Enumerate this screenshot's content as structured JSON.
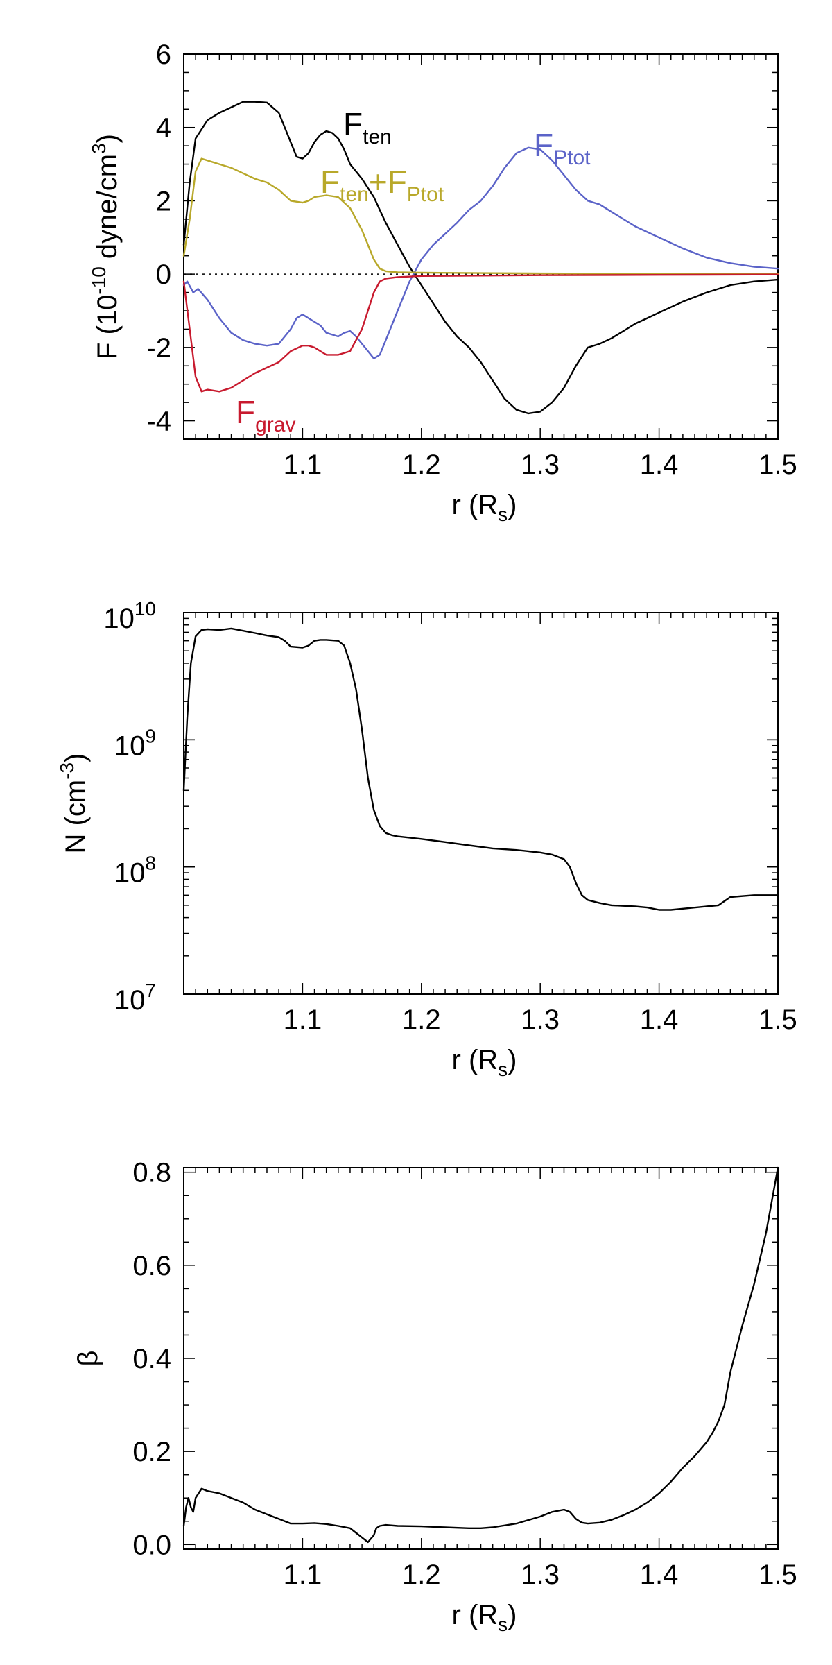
{
  "chart_data": [
    {
      "type": "line",
      "xlabel": "r (R",
      "xlabel_sub": "s",
      "xlabel_close": ")",
      "ylabel": "F (10",
      "ylabel_exp": "-10",
      "ylabel_mid": " dyne/cm",
      "ylabel_exp2": "3",
      "ylabel_close": ")",
      "xlim": [
        1.0,
        1.5
      ],
      "ylim": [
        -4.5,
        6.0
      ],
      "xticks": [
        "1.1",
        "1.2",
        "1.3",
        "1.4",
        "1.5"
      ],
      "yticks": [
        "-4",
        "-2",
        "0",
        "2",
        "4",
        "6"
      ],
      "zero_line": "dotted",
      "series": [
        {
          "name": "F_ten",
          "label_main": "F",
          "label_sub": "ten",
          "color": "#000000",
          "x": [
            1.0,
            1.005,
            1.01,
            1.02,
            1.03,
            1.04,
            1.05,
            1.06,
            1.07,
            1.08,
            1.09,
            1.095,
            1.1,
            1.105,
            1.11,
            1.115,
            1.12,
            1.125,
            1.13,
            1.135,
            1.14,
            1.15,
            1.16,
            1.17,
            1.18,
            1.19,
            1.2,
            1.21,
            1.22,
            1.23,
            1.24,
            1.25,
            1.26,
            1.27,
            1.28,
            1.29,
            1.3,
            1.31,
            1.32,
            1.33,
            1.34,
            1.35,
            1.36,
            1.37,
            1.38,
            1.39,
            1.4,
            1.42,
            1.44,
            1.46,
            1.48,
            1.5
          ],
          "y": [
            0.8,
            2.5,
            3.7,
            4.2,
            4.4,
            4.55,
            4.7,
            4.7,
            4.68,
            4.4,
            3.6,
            3.2,
            3.15,
            3.3,
            3.6,
            3.8,
            3.9,
            3.85,
            3.7,
            3.4,
            3.0,
            2.6,
            2.1,
            1.4,
            0.8,
            0.2,
            -0.3,
            -0.8,
            -1.3,
            -1.7,
            -2.0,
            -2.4,
            -2.9,
            -3.4,
            -3.7,
            -3.8,
            -3.75,
            -3.5,
            -3.1,
            -2.5,
            -2.0,
            -1.9,
            -1.75,
            -1.55,
            -1.35,
            -1.2,
            -1.05,
            -0.75,
            -0.5,
            -0.3,
            -0.2,
            -0.15
          ]
        },
        {
          "name": "F_Ptot",
          "label_main": "F",
          "label_sub": "Ptot",
          "color": "#5b63c8",
          "x": [
            1.0,
            1.003,
            1.008,
            1.012,
            1.02,
            1.03,
            1.04,
            1.05,
            1.06,
            1.07,
            1.08,
            1.09,
            1.095,
            1.1,
            1.105,
            1.11,
            1.115,
            1.12,
            1.125,
            1.13,
            1.135,
            1.14,
            1.145,
            1.15,
            1.155,
            1.16,
            1.165,
            1.17,
            1.18,
            1.19,
            1.2,
            1.21,
            1.22,
            1.23,
            1.24,
            1.25,
            1.26,
            1.27,
            1.28,
            1.29,
            1.3,
            1.31,
            1.32,
            1.33,
            1.34,
            1.35,
            1.36,
            1.37,
            1.38,
            1.39,
            1.4,
            1.42,
            1.44,
            1.46,
            1.48,
            1.5
          ],
          "y": [
            -0.3,
            -0.2,
            -0.5,
            -0.4,
            -0.7,
            -1.2,
            -1.6,
            -1.8,
            -1.9,
            -1.95,
            -1.9,
            -1.5,
            -1.2,
            -1.1,
            -1.2,
            -1.3,
            -1.4,
            -1.6,
            -1.65,
            -1.7,
            -1.6,
            -1.55,
            -1.7,
            -1.9,
            -2.1,
            -2.3,
            -2.2,
            -1.8,
            -1.0,
            -0.2,
            0.4,
            0.8,
            1.1,
            1.4,
            1.75,
            2.0,
            2.4,
            2.9,
            3.3,
            3.45,
            3.4,
            3.1,
            2.7,
            2.3,
            2.0,
            1.9,
            1.7,
            1.5,
            1.3,
            1.15,
            1.0,
            0.7,
            0.45,
            0.3,
            0.2,
            0.15
          ]
        },
        {
          "name": "F_ten+F_Ptot",
          "label_main": "F",
          "label_sub": "ten",
          "label_plus": "+F",
          "label_sub2": "Ptot",
          "color": "#b8a82a",
          "x": [
            1.0,
            1.005,
            1.01,
            1.015,
            1.02,
            1.03,
            1.04,
            1.05,
            1.06,
            1.07,
            1.08,
            1.09,
            1.1,
            1.105,
            1.11,
            1.12,
            1.13,
            1.14,
            1.15,
            1.16,
            1.165,
            1.17,
            1.18,
            1.2,
            1.25,
            1.3,
            1.4,
            1.5
          ],
          "y": [
            0.5,
            1.5,
            2.8,
            3.15,
            3.1,
            3.0,
            2.9,
            2.75,
            2.6,
            2.5,
            2.3,
            2.0,
            1.95,
            2.0,
            2.1,
            2.15,
            2.1,
            1.8,
            1.2,
            0.4,
            0.15,
            0.08,
            0.05,
            0.04,
            0.03,
            0.02,
            0.01,
            0.0
          ]
        },
        {
          "name": "F_grav",
          "label_main": "F",
          "label_sub": "grav",
          "color": "#c81a2e",
          "x": [
            1.0,
            1.005,
            1.01,
            1.015,
            1.02,
            1.03,
            1.04,
            1.05,
            1.06,
            1.07,
            1.08,
            1.09,
            1.1,
            1.105,
            1.11,
            1.12,
            1.13,
            1.14,
            1.15,
            1.16,
            1.165,
            1.17,
            1.18,
            1.2,
            1.25,
            1.3,
            1.4,
            1.5
          ],
          "y": [
            -0.2,
            -1.5,
            -2.8,
            -3.2,
            -3.15,
            -3.2,
            -3.1,
            -2.9,
            -2.7,
            -2.55,
            -2.4,
            -2.1,
            -1.95,
            -1.95,
            -2.0,
            -2.2,
            -2.2,
            -2.1,
            -1.5,
            -0.5,
            -0.2,
            -0.12,
            -0.08,
            -0.05,
            -0.04,
            -0.03,
            -0.02,
            -0.01
          ]
        }
      ]
    },
    {
      "type": "line",
      "yscale": "log",
      "xlabel": "r (R",
      "xlabel_sub": "s",
      "xlabel_close": ")",
      "ylabel": "N (cm",
      "ylabel_exp": "-3",
      "ylabel_close": ")",
      "xlim": [
        1.0,
        1.5
      ],
      "ylim": [
        10000000.0,
        10000000000.0
      ],
      "xticks": [
        "1.1",
        "1.2",
        "1.3",
        "1.4",
        "1.5"
      ],
      "yticks": [
        {
          "base": "10",
          "exp": "7"
        },
        {
          "base": "10",
          "exp": "8"
        },
        {
          "base": "10",
          "exp": "9"
        },
        {
          "base": "10",
          "exp": "10"
        }
      ],
      "series": [
        {
          "color": "#000000",
          "x": [
            1.0,
            1.003,
            1.006,
            1.01,
            1.015,
            1.02,
            1.03,
            1.04,
            1.05,
            1.06,
            1.07,
            1.08,
            1.085,
            1.09,
            1.1,
            1.105,
            1.11,
            1.115,
            1.12,
            1.13,
            1.135,
            1.14,
            1.145,
            1.15,
            1.155,
            1.16,
            1.165,
            1.17,
            1.175,
            1.18,
            1.19,
            1.2,
            1.22,
            1.24,
            1.26,
            1.28,
            1.3,
            1.31,
            1.32,
            1.325,
            1.33,
            1.335,
            1.34,
            1.35,
            1.36,
            1.38,
            1.39,
            1.4,
            1.41,
            1.42,
            1.44,
            1.45,
            1.46,
            1.48,
            1.5
          ],
          "y": [
            400000000.0,
            1500000000.0,
            4000000000.0,
            6500000000.0,
            7300000000.0,
            7400000000.0,
            7300000000.0,
            7500000000.0,
            7200000000.0,
            6900000000.0,
            6600000000.0,
            6400000000.0,
            6000000000.0,
            5400000000.0,
            5300000000.0,
            5500000000.0,
            6000000000.0,
            6100000000.0,
            6100000000.0,
            6000000000.0,
            5500000000.0,
            4000000000.0,
            2500000000.0,
            1200000000.0,
            500000000.0,
            280000000.0,
            210000000.0,
            185000000.0,
            178000000.0,
            174000000.0,
            170000000.0,
            166000000.0,
            157000000.0,
            148000000.0,
            140000000.0,
            136000000.0,
            130000000.0,
            125000000.0,
            115000000.0,
            100000000.0,
            75000000.0,
            60000000.0,
            55000000.0,
            52000000.0,
            50000000.0,
            49000000.0,
            48000000.0,
            46000000.0,
            46000000.0,
            47000000.0,
            49000000.0,
            50000000.0,
            58000000.0,
            60000000.0,
            60000000.0
          ]
        }
      ]
    },
    {
      "type": "line",
      "xlabel": "r (R",
      "xlabel_sub": "s",
      "xlabel_close": ")",
      "ylabel": "β",
      "xlim": [
        1.0,
        1.5
      ],
      "ylim": [
        -0.01,
        0.81
      ],
      "xticks": [
        "1.1",
        "1.2",
        "1.3",
        "1.4",
        "1.5"
      ],
      "yticks": [
        "0.0",
        "0.2",
        "0.4",
        "0.6",
        "0.8"
      ],
      "series": [
        {
          "color": "#000000",
          "x": [
            1.0,
            1.002,
            1.004,
            1.006,
            1.008,
            1.01,
            1.015,
            1.02,
            1.03,
            1.04,
            1.05,
            1.06,
            1.07,
            1.08,
            1.09,
            1.1,
            1.11,
            1.12,
            1.13,
            1.14,
            1.145,
            1.15,
            1.155,
            1.16,
            1.162,
            1.165,
            1.17,
            1.18,
            1.2,
            1.22,
            1.24,
            1.25,
            1.26,
            1.28,
            1.3,
            1.31,
            1.32,
            1.325,
            1.33,
            1.335,
            1.34,
            1.35,
            1.36,
            1.37,
            1.38,
            1.39,
            1.4,
            1.41,
            1.42,
            1.43,
            1.44,
            1.445,
            1.45,
            1.455,
            1.46,
            1.47,
            1.48,
            1.49,
            1.5
          ],
          "y": [
            0.04,
            0.08,
            0.1,
            0.08,
            0.07,
            0.1,
            0.12,
            0.115,
            0.11,
            0.1,
            0.09,
            0.075,
            0.065,
            0.055,
            0.045,
            0.045,
            0.046,
            0.044,
            0.04,
            0.035,
            0.025,
            0.015,
            0.005,
            0.02,
            0.035,
            0.04,
            0.042,
            0.04,
            0.039,
            0.037,
            0.035,
            0.035,
            0.037,
            0.045,
            0.06,
            0.07,
            0.075,
            0.07,
            0.055,
            0.047,
            0.045,
            0.047,
            0.053,
            0.063,
            0.075,
            0.09,
            0.11,
            0.135,
            0.165,
            0.19,
            0.22,
            0.24,
            0.265,
            0.3,
            0.37,
            0.47,
            0.56,
            0.67,
            0.81
          ]
        }
      ]
    }
  ]
}
